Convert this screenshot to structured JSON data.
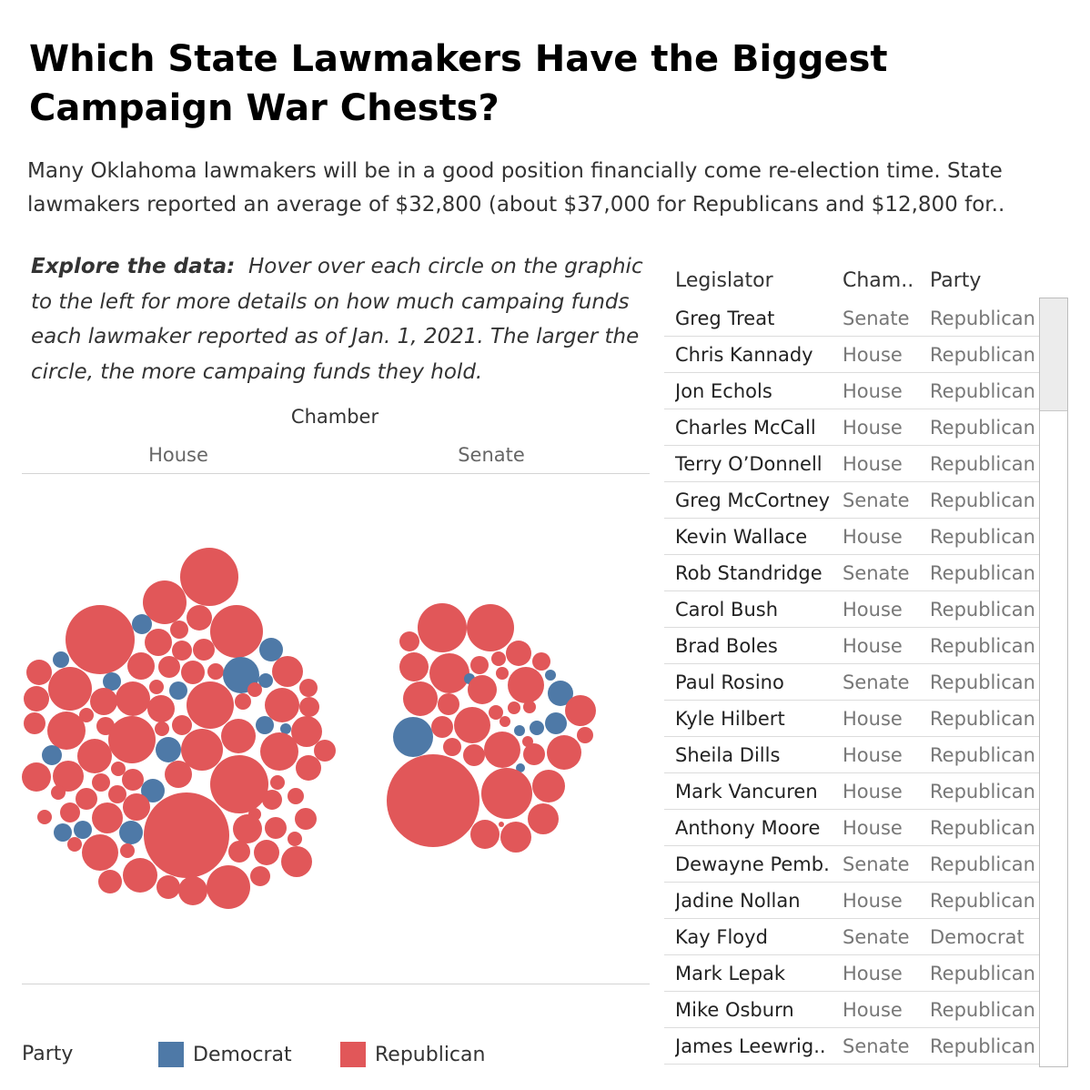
{
  "title": "Which State Lawmakers Have the Biggest Campaign War Chests?",
  "subtitle": {
    "line1": "Many Oklahoma lawmakers will be in a good position financially come re-election time. State",
    "line2": "lawmakers reported an average of $32,800 (about $37,000 for Republicans and  $12,800 for.."
  },
  "explore": {
    "lead": "Explore the data:",
    "text": "Hover over each circle on the graphic to the left for more details on how much campaing funds each lawmaker reported as of Jan. 1, 2021. The larger the circle, the more campaing funds they hold."
  },
  "chart_data": {
    "type": "packed-bubble",
    "facet_title": "Chamber",
    "facets": [
      "House",
      "Senate"
    ],
    "legend": {
      "title": "Party",
      "placement": "bottom",
      "entries": [
        {
          "label": "Democrat",
          "color": "#4e79a7"
        },
        {
          "label": "Republican",
          "color": "#e15759"
        }
      ]
    },
    "colors": {
      "Democrat": "#4e79a7",
      "Republican": "#e15759"
    }
  },
  "table": {
    "headers": {
      "legislator": "Legislator",
      "chamber": "Cham..",
      "party": "Party"
    },
    "rows": [
      {
        "name": "Greg Treat",
        "chamber": "Senate",
        "party": "Republican"
      },
      {
        "name": "Chris Kannady",
        "chamber": "House",
        "party": "Republican"
      },
      {
        "name": "Jon Echols",
        "chamber": "House",
        "party": "Republican"
      },
      {
        "name": "Charles McCall",
        "chamber": "House",
        "party": "Republican"
      },
      {
        "name": "Terry O’Donnell",
        "chamber": "House",
        "party": "Republican"
      },
      {
        "name": "Greg McCortney",
        "chamber": "Senate",
        "party": "Republican"
      },
      {
        "name": "Kevin Wallace",
        "chamber": "House",
        "party": "Republican"
      },
      {
        "name": "Rob Standridge",
        "chamber": "Senate",
        "party": "Republican"
      },
      {
        "name": "Carol Bush",
        "chamber": "House",
        "party": "Republican"
      },
      {
        "name": "Brad Boles",
        "chamber": "House",
        "party": "Republican"
      },
      {
        "name": "Paul Rosino",
        "chamber": "Senate",
        "party": "Republican"
      },
      {
        "name": "Kyle Hilbert",
        "chamber": "House",
        "party": "Republican"
      },
      {
        "name": "Sheila Dills",
        "chamber": "House",
        "party": "Republican"
      },
      {
        "name": "Mark Vancuren",
        "chamber": "House",
        "party": "Republican"
      },
      {
        "name": "Anthony Moore",
        "chamber": "House",
        "party": "Republican"
      },
      {
        "name": "Dewayne Pemb..",
        "chamber": "Senate",
        "party": "Republican"
      },
      {
        "name": "Jadine Nollan",
        "chamber": "House",
        "party": "Republican"
      },
      {
        "name": "Kay Floyd",
        "chamber": "Senate",
        "party": "Democrat"
      },
      {
        "name": "Mark Lepak",
        "chamber": "House",
        "party": "Republican"
      },
      {
        "name": "Mike Osburn",
        "chamber": "House",
        "party": "Republican"
      },
      {
        "name": "James Leewrig..",
        "chamber": "Senate",
        "party": "Republican"
      }
    ]
  }
}
